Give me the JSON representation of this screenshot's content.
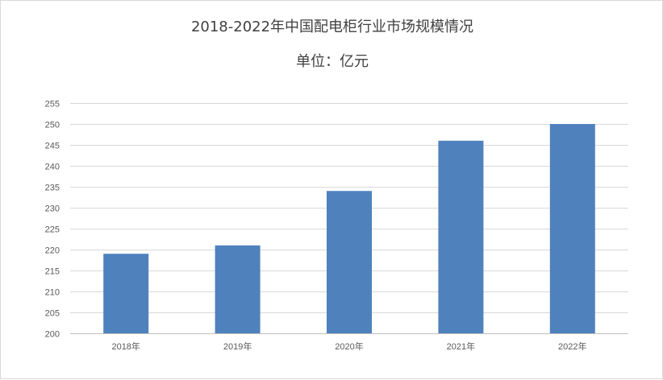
{
  "chart_data": {
    "type": "bar",
    "title": "2018-2022年中国配电柜行业市场规模情况",
    "subtitle": "单位：亿元",
    "categories": [
      "2018年",
      "2019年",
      "2020年",
      "2021年",
      "2022年"
    ],
    "series": [
      {
        "values": [
          219,
          221,
          234,
          246,
          250
        ]
      }
    ],
    "ylim": [
      200,
      255
    ],
    "ytick_step": 5,
    "yticks": [
      "200",
      "205",
      "210",
      "215",
      "220",
      "225",
      "230",
      "235",
      "240",
      "245",
      "250",
      "255"
    ],
    "grid": true,
    "legend": "none",
    "bar_color": "#4f81bd"
  }
}
